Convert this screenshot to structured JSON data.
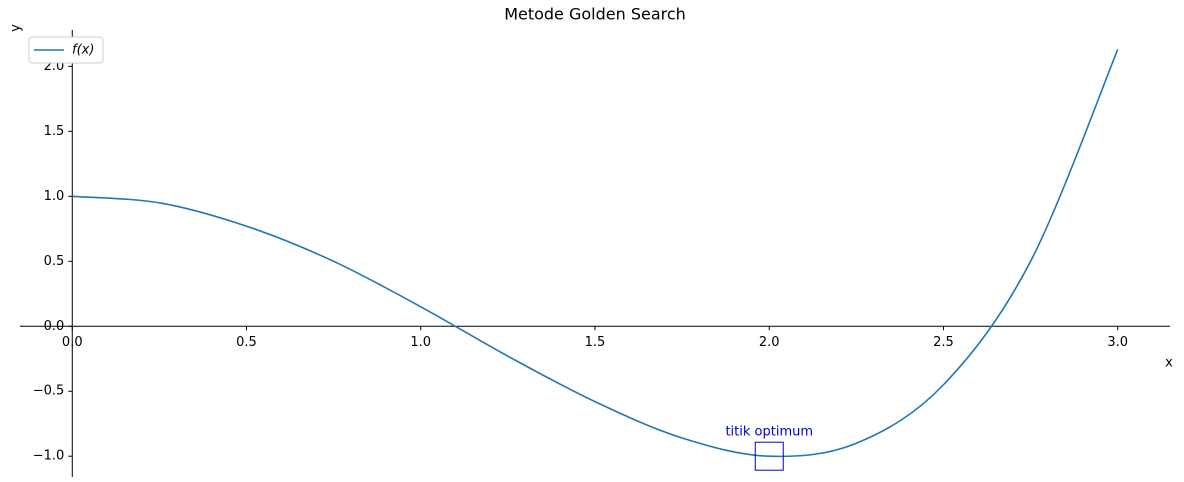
{
  "chart_data": {
    "type": "line",
    "title": "Metode Golden Search",
    "xlabel": "x",
    "ylabel": "y",
    "x": [
      0,
      0.25,
      0.5,
      0.75,
      1.0,
      1.25,
      1.5,
      1.75,
      2.0,
      2.25,
      2.5,
      2.75,
      3.0
    ],
    "series": [
      {
        "name": "f(x)",
        "color": "#1f77b4",
        "values": [
          1.0,
          0.95,
          0.77,
          0.5,
          0.15,
          -0.23,
          -0.58,
          -0.86,
          -1.0,
          -0.9,
          -0.45,
          0.5,
          2.13
        ]
      }
    ],
    "annotation": {
      "text": "titik optimum",
      "x": 2.0,
      "y": -1.0,
      "color": "#0000cc"
    },
    "xlim": [
      -0.15,
      3.15
    ],
    "ylim": [
      -1.16,
      2.28
    ],
    "xticks": [
      {
        "value": 0,
        "label": "0.0"
      },
      {
        "value": 0.5,
        "label": "0.5"
      },
      {
        "value": 1,
        "label": "1.0"
      },
      {
        "value": 1.5,
        "label": "1.5"
      },
      {
        "value": 2,
        "label": "2.0"
      },
      {
        "value": 2.5,
        "label": "2.5"
      },
      {
        "value": 3,
        "label": "3.0"
      }
    ],
    "yticks": [
      {
        "value": -1,
        "label": "−1.0"
      },
      {
        "value": -0.5,
        "label": "−0.5"
      },
      {
        "value": 0,
        "label": "0.0"
      },
      {
        "value": 0.5,
        "label": "0.5"
      },
      {
        "value": 1,
        "label": "1.0"
      },
      {
        "value": 1.5,
        "label": "1.5"
      },
      {
        "value": 2,
        "label": "2.0"
      }
    ],
    "legend": "upper left"
  }
}
